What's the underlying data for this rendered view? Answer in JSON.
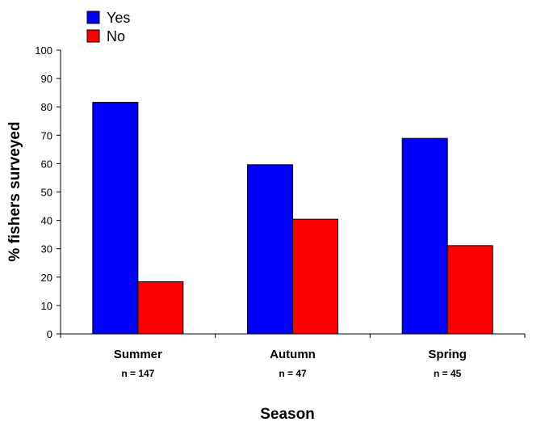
{
  "chart_data": {
    "type": "bar",
    "categories": [
      "Summer",
      "Autumn",
      "Spring"
    ],
    "category_sublabels": [
      "n = 147",
      "n = 47",
      "n = 45"
    ],
    "series": [
      {
        "name": "Yes",
        "values": [
          81.6,
          59.6,
          68.9
        ],
        "color": "#0000ff"
      },
      {
        "name": "No",
        "values": [
          18.4,
          40.4,
          31.1
        ],
        "color": "#ff0000"
      }
    ],
    "xlabel": "Season",
    "ylabel": "% fishers surveyed",
    "ylim": [
      0,
      100
    ],
    "yticks": [
      0,
      10,
      20,
      30,
      40,
      50,
      60,
      70,
      80,
      90,
      100
    ],
    "grid": false,
    "legend": "top-left"
  }
}
